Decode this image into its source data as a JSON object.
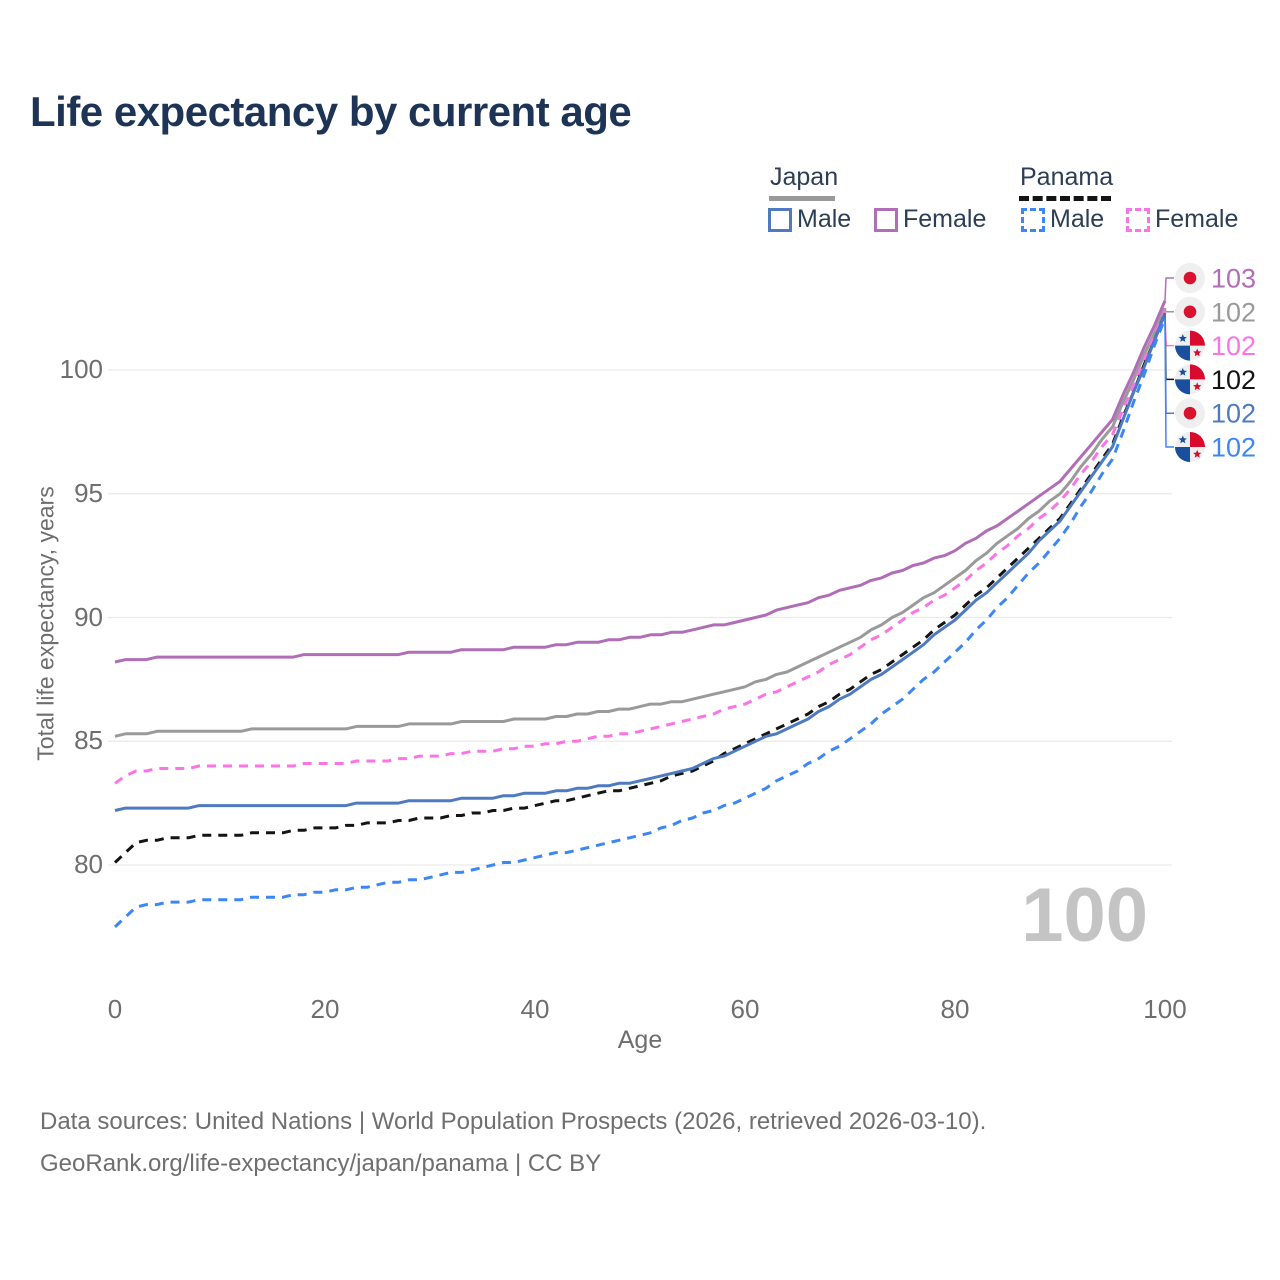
{
  "page": {
    "title": "Life expectancy by current age",
    "watermark": "100",
    "footer": {
      "line1": "Data sources: United Nations | World Population Prospects (2026, retrieved 2026-03-10).",
      "line2": "GeoRank.org/life-expectancy/japan/panama | CC BY"
    }
  },
  "legend": {
    "groups": [
      {
        "label": "Japan",
        "line_style": "solid",
        "underline_color": "#9a9a9a"
      },
      {
        "label": "Panama",
        "line_style": "dashed",
        "underline_color": "#141414"
      }
    ],
    "items": [
      {
        "label": "Male",
        "group": "Japan",
        "color": "#4e7ac0",
        "box_style": "solid"
      },
      {
        "label": "Female",
        "group": "Japan",
        "color": "#af6eb5",
        "box_style": "solid"
      },
      {
        "label": "Male",
        "group": "Panama",
        "color": "#3c86f5",
        "box_style": "dashed"
      },
      {
        "label": "Female",
        "group": "Panama",
        "color": "#fb74e6",
        "box_style": "dashed"
      }
    ]
  },
  "chart_data": {
    "type": "line",
    "title": "Life expectancy by current age",
    "xlabel": "Age",
    "ylabel": "Total life expectancy, years",
    "xlim": [
      0,
      100
    ],
    "ylim": [
      76.5,
      103.5
    ],
    "xticks": [
      0,
      20,
      40,
      60,
      80,
      100
    ],
    "yticks": [
      80,
      85,
      90,
      95,
      100
    ],
    "grid": true,
    "legend_position": "top-right",
    "x": [
      0,
      2,
      5,
      10,
      15,
      20,
      25,
      30,
      35,
      40,
      45,
      50,
      55,
      60,
      65,
      70,
      75,
      80,
      85,
      90,
      95,
      100
    ],
    "series": [
      {
        "name": "Japan Female",
        "country": "japan",
        "sex": "female",
        "color": "#af6eb5",
        "dashed": false,
        "values": [
          88.2,
          88.3,
          88.4,
          88.4,
          88.4,
          88.5,
          88.5,
          88.6,
          88.7,
          88.8,
          89.0,
          89.2,
          89.5,
          89.9,
          90.5,
          91.2,
          91.9,
          92.7,
          94.0,
          95.5,
          98.0,
          102.8
        ],
        "end_label": "103"
      },
      {
        "name": "Japan Total",
        "country": "japan",
        "sex": "total",
        "color": "#9a9a9a",
        "dashed": false,
        "values": [
          85.2,
          85.3,
          85.4,
          85.4,
          85.5,
          85.5,
          85.6,
          85.7,
          85.8,
          85.9,
          86.1,
          86.4,
          86.7,
          87.2,
          88.0,
          89.0,
          90.2,
          91.6,
          93.3,
          95.0,
          97.7,
          102.5
        ],
        "end_label": "102"
      },
      {
        "name": "Panama Female",
        "country": "panama",
        "sex": "female",
        "color": "#fb74e6",
        "dashed": true,
        "values": [
          83.3,
          83.8,
          83.9,
          84.0,
          84.0,
          84.1,
          84.2,
          84.4,
          84.6,
          84.8,
          85.1,
          85.4,
          85.9,
          86.5,
          87.4,
          88.5,
          89.9,
          91.2,
          92.9,
          94.7,
          97.4,
          102.4
        ],
        "end_label": "102"
      },
      {
        "name": "Panama Total",
        "country": "panama",
        "sex": "total",
        "color": "#141414",
        "dashed": true,
        "values": [
          80.1,
          80.9,
          81.1,
          81.2,
          81.3,
          81.5,
          81.7,
          81.9,
          82.1,
          82.4,
          82.8,
          83.2,
          83.8,
          84.9,
          85.9,
          87.1,
          88.5,
          90.1,
          92.0,
          94.0,
          97.0,
          102.3
        ],
        "end_label": "102"
      },
      {
        "name": "Japan Male",
        "country": "japan",
        "sex": "male",
        "color": "#4e7ac0",
        "dashed": false,
        "values": [
          82.2,
          82.3,
          82.3,
          82.4,
          82.4,
          82.4,
          82.5,
          82.6,
          82.7,
          82.9,
          83.1,
          83.4,
          83.9,
          84.8,
          85.7,
          86.9,
          88.3,
          89.9,
          91.8,
          93.9,
          96.9,
          102.3
        ],
        "end_label": "102"
      },
      {
        "name": "Panama Male",
        "country": "panama",
        "sex": "male",
        "color": "#3c86f5",
        "dashed": true,
        "values": [
          77.5,
          78.3,
          78.5,
          78.6,
          78.7,
          78.9,
          79.2,
          79.5,
          79.9,
          80.3,
          80.7,
          81.2,
          81.9,
          82.7,
          83.8,
          85.1,
          86.7,
          88.6,
          90.8,
          93.2,
          96.4,
          102.1
        ],
        "end_label": "102"
      }
    ],
    "colors": {
      "grid": "#e9e9e9",
      "axis_text": "#6e6e6e",
      "japan_flag_red": "#d9132f",
      "panama_flag_red": "#d80a2d",
      "panama_flag_blue": "#1a4e9e",
      "flag_bg": "#efefef"
    }
  }
}
